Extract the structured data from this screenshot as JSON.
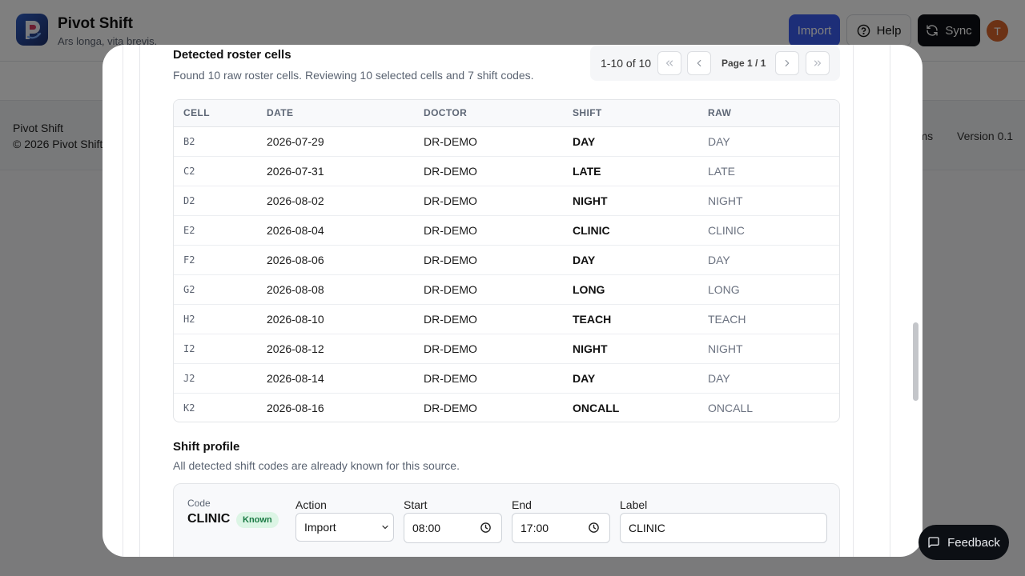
{
  "app": {
    "name": "Pivot Shift",
    "tagline": "Ars longa, vita brevis.",
    "header": {
      "import_label": "Import",
      "help_label": "Help",
      "sync_label": "Sync",
      "avatar_initial": "T"
    },
    "footer": {
      "name": "Pivot Shift",
      "copyright": "© 2026 Pivot Shift",
      "terms": "erms",
      "version": "Version 0.1"
    }
  },
  "modal": {
    "roster": {
      "title": "Detected roster cells",
      "subtitle": "Found 10 raw roster cells. Reviewing 10 selected cells and 7 shift codes.",
      "pagination": {
        "range": "1-10 of 10",
        "page_label": "Page 1 / 1"
      },
      "columns": [
        "CELL",
        "DATE",
        "DOCTOR",
        "SHIFT",
        "RAW"
      ],
      "rows": [
        {
          "cell": "B2",
          "date": "2026-07-29",
          "doctor": "DR-DEMO",
          "shift": "DAY",
          "raw": "DAY"
        },
        {
          "cell": "C2",
          "date": "2026-07-31",
          "doctor": "DR-DEMO",
          "shift": "LATE",
          "raw": "LATE"
        },
        {
          "cell": "D2",
          "date": "2026-08-02",
          "doctor": "DR-DEMO",
          "shift": "NIGHT",
          "raw": "NIGHT"
        },
        {
          "cell": "E2",
          "date": "2026-08-04",
          "doctor": "DR-DEMO",
          "shift": "CLINIC",
          "raw": "CLINIC"
        },
        {
          "cell": "F2",
          "date": "2026-08-06",
          "doctor": "DR-DEMO",
          "shift": "DAY",
          "raw": "DAY"
        },
        {
          "cell": "G2",
          "date": "2026-08-08",
          "doctor": "DR-DEMO",
          "shift": "LONG",
          "raw": "LONG"
        },
        {
          "cell": "H2",
          "date": "2026-08-10",
          "doctor": "DR-DEMO",
          "shift": "TEACH",
          "raw": "TEACH"
        },
        {
          "cell": "I2",
          "date": "2026-08-12",
          "doctor": "DR-DEMO",
          "shift": "NIGHT",
          "raw": "NIGHT"
        },
        {
          "cell": "J2",
          "date": "2026-08-14",
          "doctor": "DR-DEMO",
          "shift": "DAY",
          "raw": "DAY"
        },
        {
          "cell": "K2",
          "date": "2026-08-16",
          "doctor": "DR-DEMO",
          "shift": "ONCALL",
          "raw": "ONCALL"
        }
      ]
    },
    "profile": {
      "title": "Shift profile",
      "subtitle": "All detected shift codes are already known for this source.",
      "code_label": "Code",
      "code_value": "CLINIC",
      "badge": "Known",
      "action_label": "Action",
      "action_value": "Import",
      "start_label": "Start",
      "start_value": "08:00",
      "end_label": "End",
      "end_value": "17:00",
      "label_label": "Label",
      "label_value": "CLINIC"
    }
  },
  "feedback_label": "Feedback"
}
